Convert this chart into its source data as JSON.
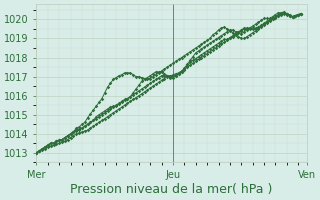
{
  "bg_color": "#d8ede8",
  "grid_color_major": "#bbccbb",
  "grid_color_minor": "#ccddcc",
  "line_color": "#2d6e3a",
  "ylim": [
    1012.5,
    1020.8
  ],
  "yticks": [
    1013,
    1014,
    1015,
    1016,
    1017,
    1018,
    1019,
    1020
  ],
  "xlabel": "Pression niveau de la mer( hPa )",
  "xlabel_fontsize": 9,
  "tick_fontsize": 7,
  "day_labels": [
    "Mer",
    "Jeu",
    "Ven"
  ],
  "day_positions": [
    0,
    48,
    95
  ],
  "total_points": 96,
  "series": [
    [
      1013.0,
      1013.1,
      1013.2,
      1013.3,
      1013.4,
      1013.5,
      1013.5,
      1013.6,
      1013.65,
      1013.7,
      1013.8,
      1013.9,
      1014.0,
      1014.1,
      1014.3,
      1014.35,
      1014.5,
      1014.6,
      1014.85,
      1015.05,
      1015.25,
      1015.45,
      1015.65,
      1015.85,
      1016.15,
      1016.45,
      1016.65,
      1016.85,
      1016.95,
      1017.05,
      1017.1,
      1017.2,
      1017.2,
      1017.2,
      1017.1,
      1017.0,
      1017.0,
      1016.95,
      1016.9,
      1016.9,
      1016.9,
      1017.0,
      1017.1,
      1017.2,
      1017.3,
      1017.4,
      1017.5,
      1017.6,
      1017.7,
      1017.8,
      1017.9,
      1018.0,
      1018.1,
      1018.2,
      1018.3,
      1018.4,
      1018.5,
      1018.6,
      1018.7,
      1018.8,
      1018.9,
      1019.0,
      1019.2,
      1019.3,
      1019.45,
      1019.55,
      1019.6,
      1019.5,
      1019.4,
      1019.3,
      1019.2,
      1019.1,
      1019.0,
      1019.0,
      1019.1,
      1019.2,
      1019.3,
      1019.4,
      1019.5,
      1019.6,
      1019.7,
      1019.8,
      1019.9,
      1020.0,
      1020.1,
      1020.2,
      1020.3,
      1020.35,
      1020.3,
      1020.2,
      1020.15,
      1020.2,
      1020.25,
      1020.3
    ],
    [
      1013.0,
      1013.1,
      1013.2,
      1013.3,
      1013.4,
      1013.5,
      1013.5,
      1013.6,
      1013.65,
      1013.7,
      1013.8,
      1013.9,
      1014.0,
      1014.1,
      1014.15,
      1014.2,
      1014.3,
      1014.4,
      1014.5,
      1014.6,
      1014.7,
      1014.8,
      1014.9,
      1015.0,
      1015.1,
      1015.2,
      1015.3,
      1015.4,
      1015.5,
      1015.6,
      1015.7,
      1015.8,
      1015.85,
      1015.95,
      1016.05,
      1016.15,
      1016.25,
      1016.35,
      1016.45,
      1016.55,
      1016.65,
      1016.75,
      1016.85,
      1016.95,
      1017.05,
      1017.05,
      1017.05,
      1017.05,
      1017.05,
      1017.05,
      1017.15,
      1017.25,
      1017.35,
      1017.55,
      1017.75,
      1017.85,
      1017.95,
      1018.05,
      1018.15,
      1018.25,
      1018.35,
      1018.45,
      1018.55,
      1018.65,
      1018.75,
      1018.85,
      1018.95,
      1018.95,
      1019.05,
      1019.15,
      1019.25,
      1019.35,
      1019.45,
      1019.55,
      1019.55,
      1019.55,
      1019.55,
      1019.55,
      1019.55,
      1019.65,
      1019.75,
      1019.85,
      1019.95,
      1020.05,
      1020.15,
      1020.25,
      1020.3,
      1020.35,
      1020.3,
      1020.25,
      1020.15,
      1020.2,
      1020.25,
      1020.3
    ],
    [
      1013.0,
      1013.1,
      1013.2,
      1013.3,
      1013.4,
      1013.5,
      1013.5,
      1013.6,
      1013.65,
      1013.7,
      1013.8,
      1013.9,
      1014.0,
      1014.1,
      1014.2,
      1014.25,
      1014.3,
      1014.4,
      1014.5,
      1014.6,
      1014.7,
      1014.9,
      1015.0,
      1015.1,
      1015.2,
      1015.3,
      1015.4,
      1015.45,
      1015.45,
      1015.55,
      1015.65,
      1015.75,
      1015.85,
      1015.95,
      1016.15,
      1016.35,
      1016.55,
      1016.75,
      1016.85,
      1016.95,
      1017.05,
      1017.15,
      1017.25,
      1017.25,
      1017.25,
      1017.15,
      1017.05,
      1016.95,
      1016.95,
      1017.05,
      1017.15,
      1017.25,
      1017.45,
      1017.65,
      1017.85,
      1018.05,
      1018.25,
      1018.35,
      1018.45,
      1018.55,
      1018.65,
      1018.75,
      1018.85,
      1018.95,
      1019.05,
      1019.15,
      1019.25,
      1019.35,
      1019.45,
      1019.45,
      1019.35,
      1019.35,
      1019.25,
      1019.35,
      1019.45,
      1019.55,
      1019.65,
      1019.75,
      1019.85,
      1019.95,
      1020.05,
      1020.05,
      1020.05,
      1020.15,
      1020.25,
      1020.35,
      1020.35,
      1020.4,
      1020.3,
      1020.2,
      1020.15,
      1020.2,
      1020.25,
      1020.3
    ],
    [
      1013.0,
      1013.1,
      1013.15,
      1013.2,
      1013.3,
      1013.35,
      1013.4,
      1013.45,
      1013.5,
      1013.55,
      1013.6,
      1013.7,
      1013.8,
      1013.9,
      1014.0,
      1014.05,
      1014.1,
      1014.15,
      1014.2,
      1014.3,
      1014.4,
      1014.5,
      1014.6,
      1014.7,
      1014.8,
      1014.9,
      1015.0,
      1015.1,
      1015.2,
      1015.3,
      1015.4,
      1015.5,
      1015.6,
      1015.7,
      1015.8,
      1015.9,
      1016.0,
      1016.1,
      1016.2,
      1016.3,
      1016.4,
      1016.5,
      1016.6,
      1016.7,
      1016.8,
      1016.9,
      1017.0,
      1017.0,
      1017.1,
      1017.15,
      1017.2,
      1017.3,
      1017.4,
      1017.5,
      1017.6,
      1017.7,
      1017.8,
      1017.9,
      1018.0,
      1018.1,
      1018.2,
      1018.3,
      1018.4,
      1018.5,
      1018.6,
      1018.7,
      1018.8,
      1018.9,
      1019.0,
      1019.1,
      1019.2,
      1019.3,
      1019.4,
      1019.5,
      1019.5,
      1019.5,
      1019.5,
      1019.5,
      1019.6,
      1019.7,
      1019.8,
      1019.9,
      1020.0,
      1020.0,
      1020.1,
      1020.2,
      1020.25,
      1020.3,
      1020.25,
      1020.2,
      1020.15,
      1020.2,
      1020.25,
      1020.3
    ]
  ]
}
